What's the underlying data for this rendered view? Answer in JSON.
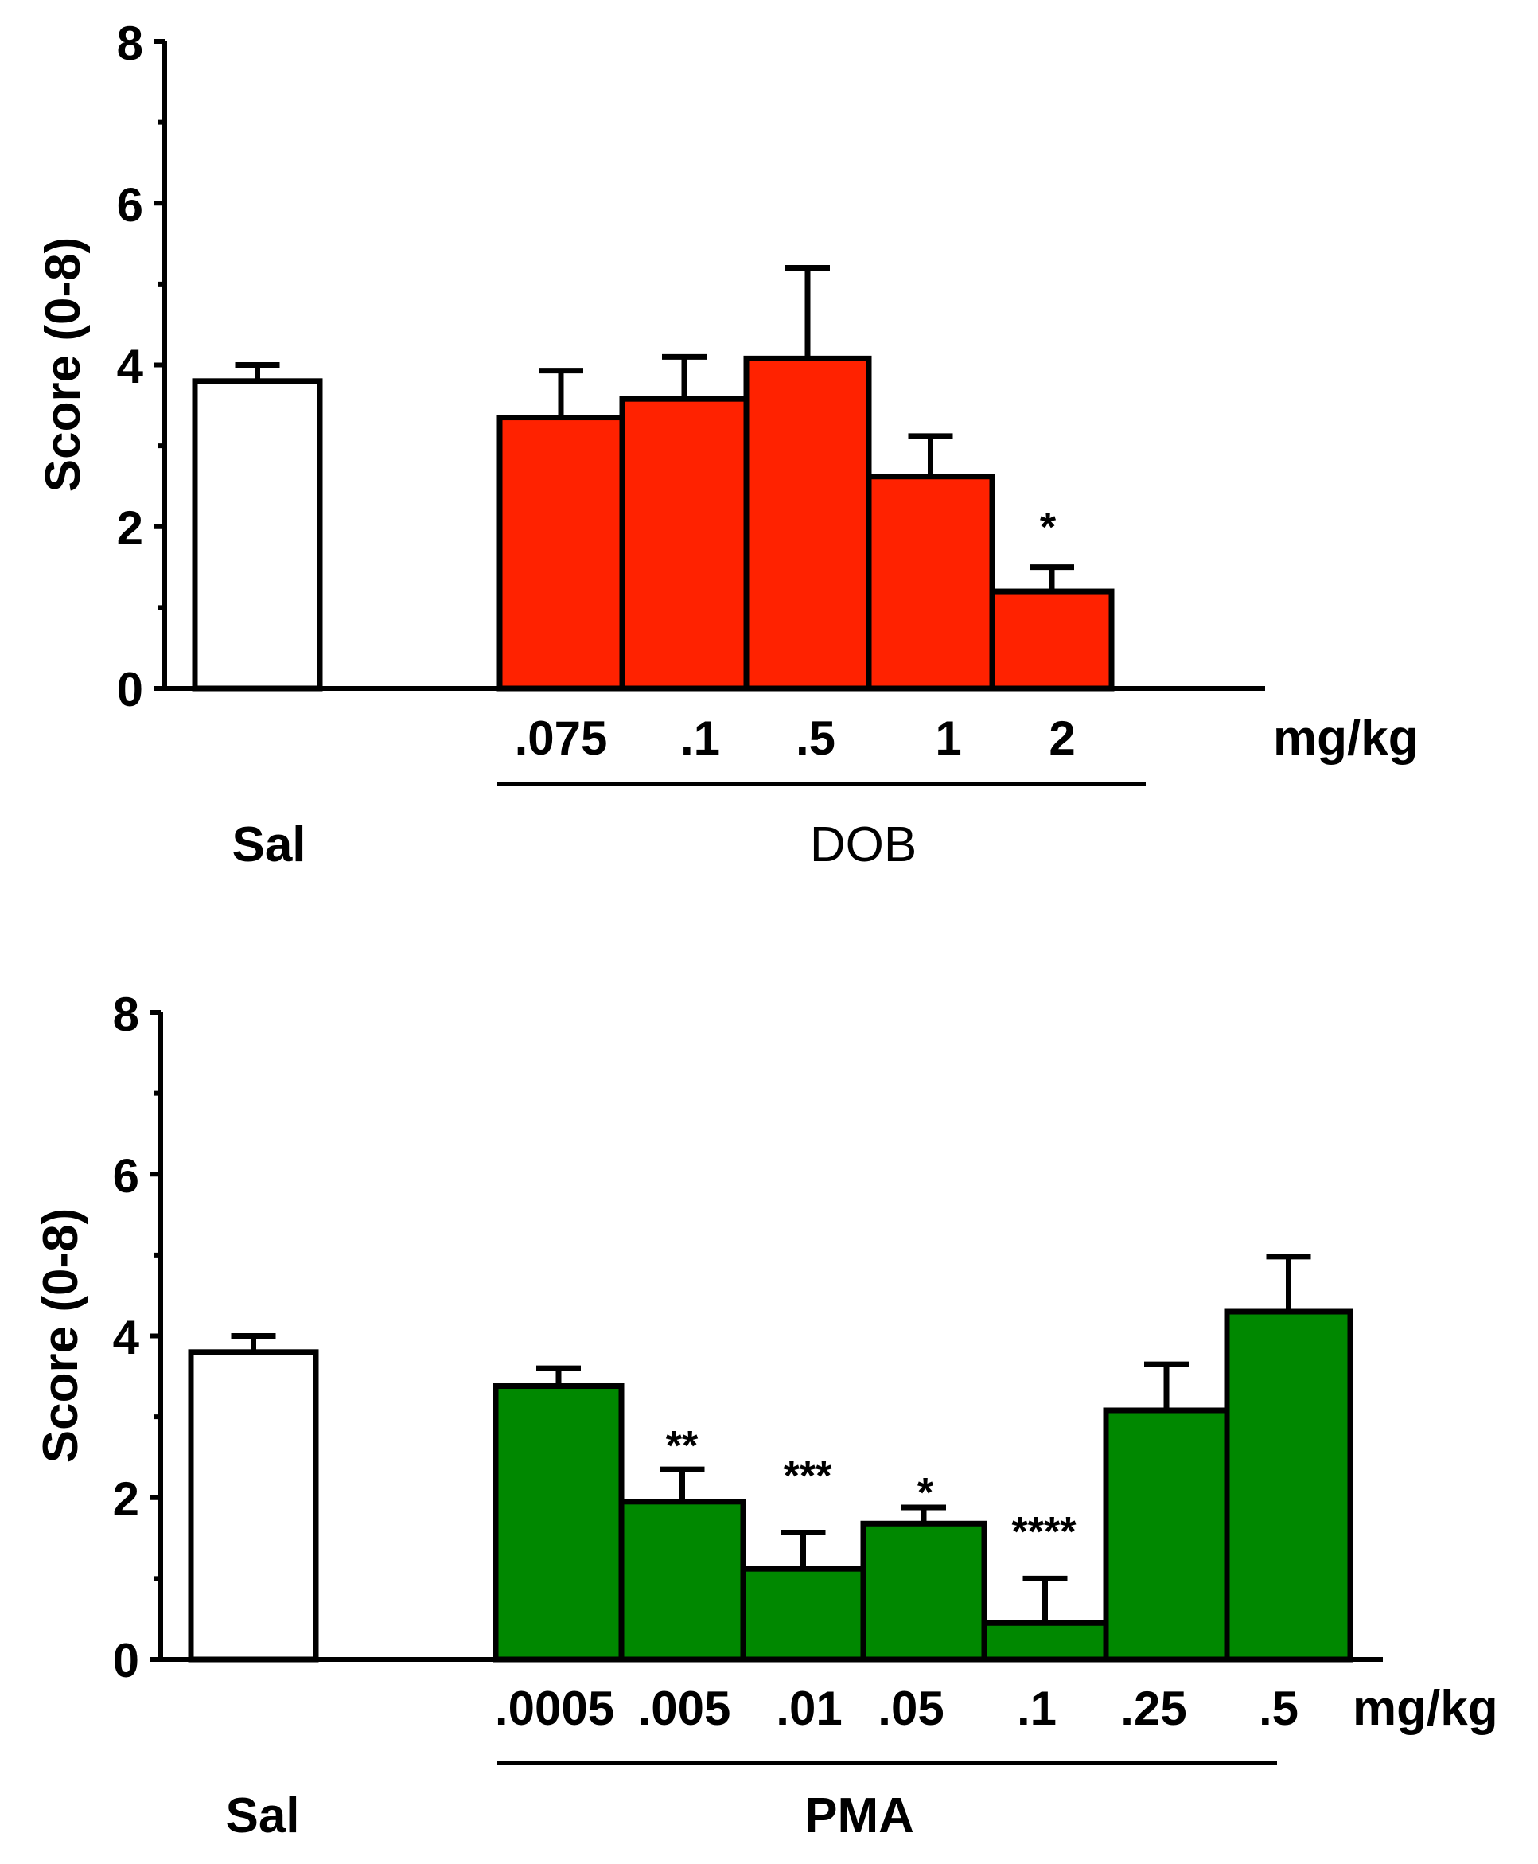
{
  "chart_data": [
    {
      "type": "bar",
      "ylabel": "Score (0-8)",
      "ylim": [
        0,
        8
      ],
      "yticks": [
        0,
        2,
        4,
        6,
        8
      ],
      "unit_label": "mg/kg",
      "control": {
        "label": "Sal",
        "value": 3.8,
        "error": 0.2,
        "color": "#ffffff"
      },
      "treatment": {
        "group_label": "DOB",
        "color": "#ff2200",
        "categories": [
          ".075",
          ".1",
          ".5",
          "1",
          "2"
        ],
        "values": [
          3.35,
          3.58,
          4.08,
          2.62,
          1.2
        ],
        "errors": [
          0.58,
          0.52,
          1.12,
          0.5,
          0.3
        ],
        "significance": [
          "",
          "",
          "",
          "",
          "*"
        ]
      }
    },
    {
      "type": "bar",
      "ylabel": "Score (0-8)",
      "ylim": [
        0,
        8
      ],
      "yticks": [
        0,
        2,
        4,
        6,
        8
      ],
      "unit_label": "mg/kg",
      "control": {
        "label": "Sal",
        "value": 3.8,
        "error": 0.2,
        "color": "#ffffff"
      },
      "treatment": {
        "group_label": "PMA",
        "color": "#008800",
        "categories": [
          ".0005",
          ".005",
          ".01",
          ".05",
          ".1",
          ".25",
          ".5"
        ],
        "values": [
          3.38,
          1.95,
          1.12,
          1.68,
          0.45,
          3.08,
          4.3
        ],
        "errors": [
          0.22,
          0.4,
          0.45,
          0.2,
          0.55,
          0.57,
          0.68
        ],
        "significance": [
          "",
          "**",
          "***",
          "*",
          "****",
          "",
          ""
        ]
      }
    }
  ]
}
